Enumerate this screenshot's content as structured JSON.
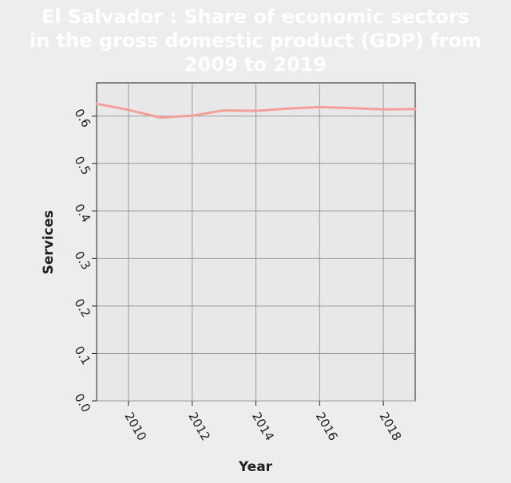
{
  "chart_data": {
    "type": "line",
    "title_lines": [
      "El Salvador : Share of economic sectors",
      "in the gross domestic product (GDP) from",
      "2009 to 2019"
    ],
    "xlabel": "Year",
    "ylabel": "Services",
    "xlim": [
      2009,
      2019
    ],
    "ylim": [
      0,
      0.67
    ],
    "x_ticks": [
      2010,
      2012,
      2014,
      2016,
      2018
    ],
    "x_tick_labels": [
      "2010",
      "2012",
      "2014",
      "2016",
      "2018"
    ],
    "y_ticks": [
      0.0,
      0.1,
      0.2,
      0.3,
      0.4,
      0.5,
      0.6
    ],
    "y_tick_labels": [
      "0.0",
      "0.1",
      "0.2",
      "0.3",
      "0.4",
      "0.5",
      "0.6"
    ],
    "grid": true,
    "series": [
      {
        "color": "#f4a09a",
        "x": [
          2009,
          2010,
          2011,
          2012,
          2013,
          2014,
          2015,
          2016,
          2017,
          2018,
          2019
        ],
        "values": [
          0.626,
          0.613,
          0.597,
          0.601,
          0.612,
          0.611,
          0.616,
          0.619,
          0.617,
          0.614,
          0.615
        ]
      }
    ]
  }
}
